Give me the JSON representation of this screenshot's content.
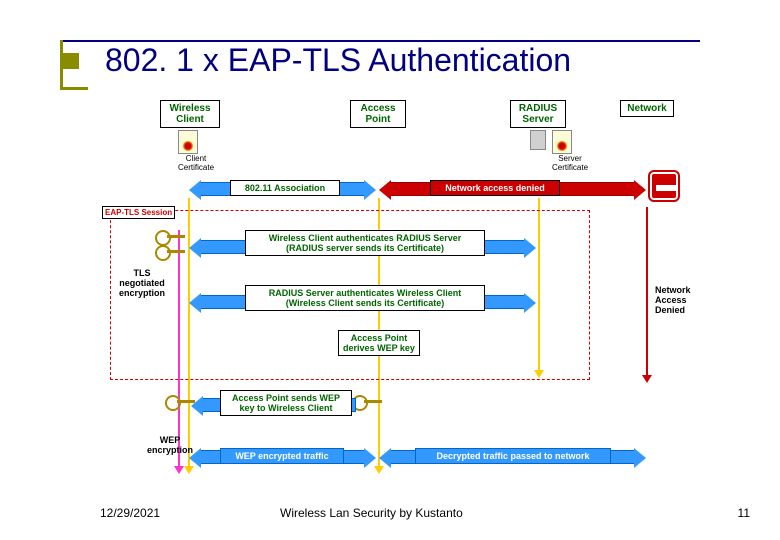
{
  "title": "802. 1 x EAP-TLS Authentication",
  "headers": {
    "client": "Wireless\nClient",
    "ap": "Access\nPoint",
    "radius": "RADIUS\nServer",
    "network": "Network"
  },
  "icon_labels": {
    "client_cert": "Client\nCertificate",
    "server_cert": "Server\nCertificate"
  },
  "messages": {
    "assoc": "802.11 Association",
    "denied": "Network access denied",
    "auth_server": "Wireless Client authenticates RADIUS Server\n(RADIUS server sends its Certificate)",
    "auth_client": "RADIUS Server authenticates Wireless Client\n(Wireless Client sends its Certificate)",
    "derive_wep": "Access Point\nderives WEP key",
    "send_wep": "Access Point sends WEP\nkey to Wireless Client",
    "wep_traffic": "WEP encrypted traffic",
    "decrypted": "Decrypted traffic passed to network"
  },
  "labels": {
    "eaptls": "EAP-TLS Session",
    "tls": "TLS\nnegotiated\nencryption",
    "net_denied": "Network\nAccess\nDenied",
    "wep_enc": "WEP\nencryption"
  },
  "colors": {
    "blue": "#3399ff",
    "red": "#cc0000",
    "green": "#006400",
    "yellow": "#ffcc00",
    "magenta": "#ff33cc",
    "navy": "#000080",
    "olive": "#8B8B00"
  },
  "lanes_x": {
    "client": 108,
    "ap": 298,
    "radius": 458,
    "network": 566
  },
  "footer": {
    "date": "12/29/2021",
    "center": "Wireless Lan Security by Kustanto",
    "page": "11"
  }
}
